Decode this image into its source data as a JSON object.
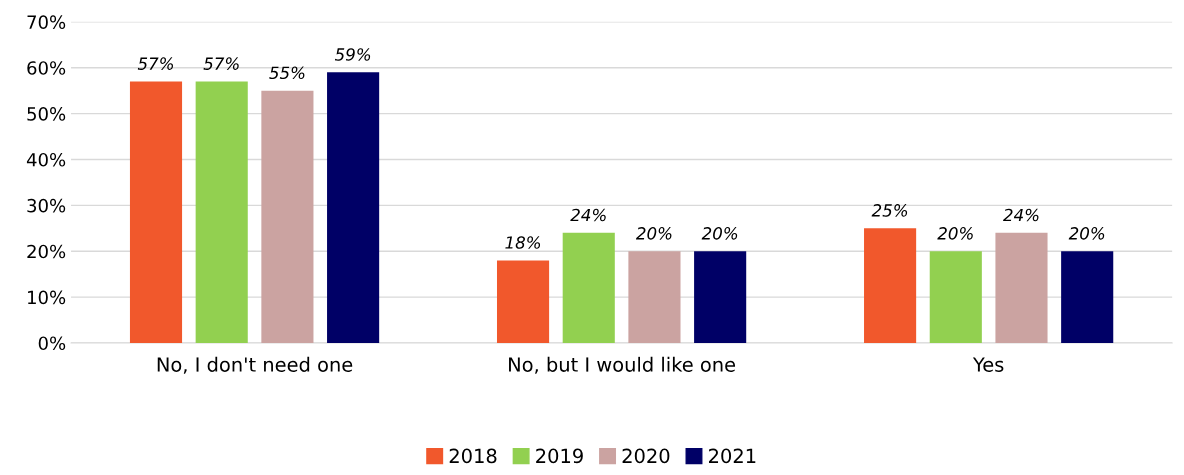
{
  "chart_data": {
    "type": "bar",
    "categories": [
      "No, I don't need one",
      "No, but I would like one",
      "Yes"
    ],
    "series": [
      {
        "name": "2018",
        "color": "#f1582c",
        "values": [
          57,
          18,
          25
        ],
        "value_labels": [
          "57%",
          "18%",
          "25%"
        ]
      },
      {
        "name": "2019",
        "color": "#92d050",
        "values": [
          57,
          24,
          20
        ],
        "value_labels": [
          "57%",
          "24%",
          "20%"
        ]
      },
      {
        "name": "2020",
        "color": "#cba3a1",
        "values": [
          55,
          20,
          24
        ],
        "value_labels": [
          "55%",
          "20%",
          "24%"
        ]
      },
      {
        "name": "2021",
        "color": "#000066",
        "values": [
          59,
          20,
          20
        ],
        "value_labels": [
          "59%",
          "20%",
          "20%"
        ]
      }
    ],
    "ylim": [
      0,
      70
    ],
    "yticks": [
      {
        "value": 0,
        "label": "0%"
      },
      {
        "value": 10,
        "label": "10%"
      },
      {
        "value": 20,
        "label": "20%"
      },
      {
        "value": 30,
        "label": "30%"
      },
      {
        "value": 40,
        "label": "40%"
      },
      {
        "value": 50,
        "label": "50%"
      },
      {
        "value": 60,
        "label": "60%"
      },
      {
        "value": 70,
        "label": "70%"
      }
    ],
    "grid": "y",
    "legend": "bottom"
  }
}
